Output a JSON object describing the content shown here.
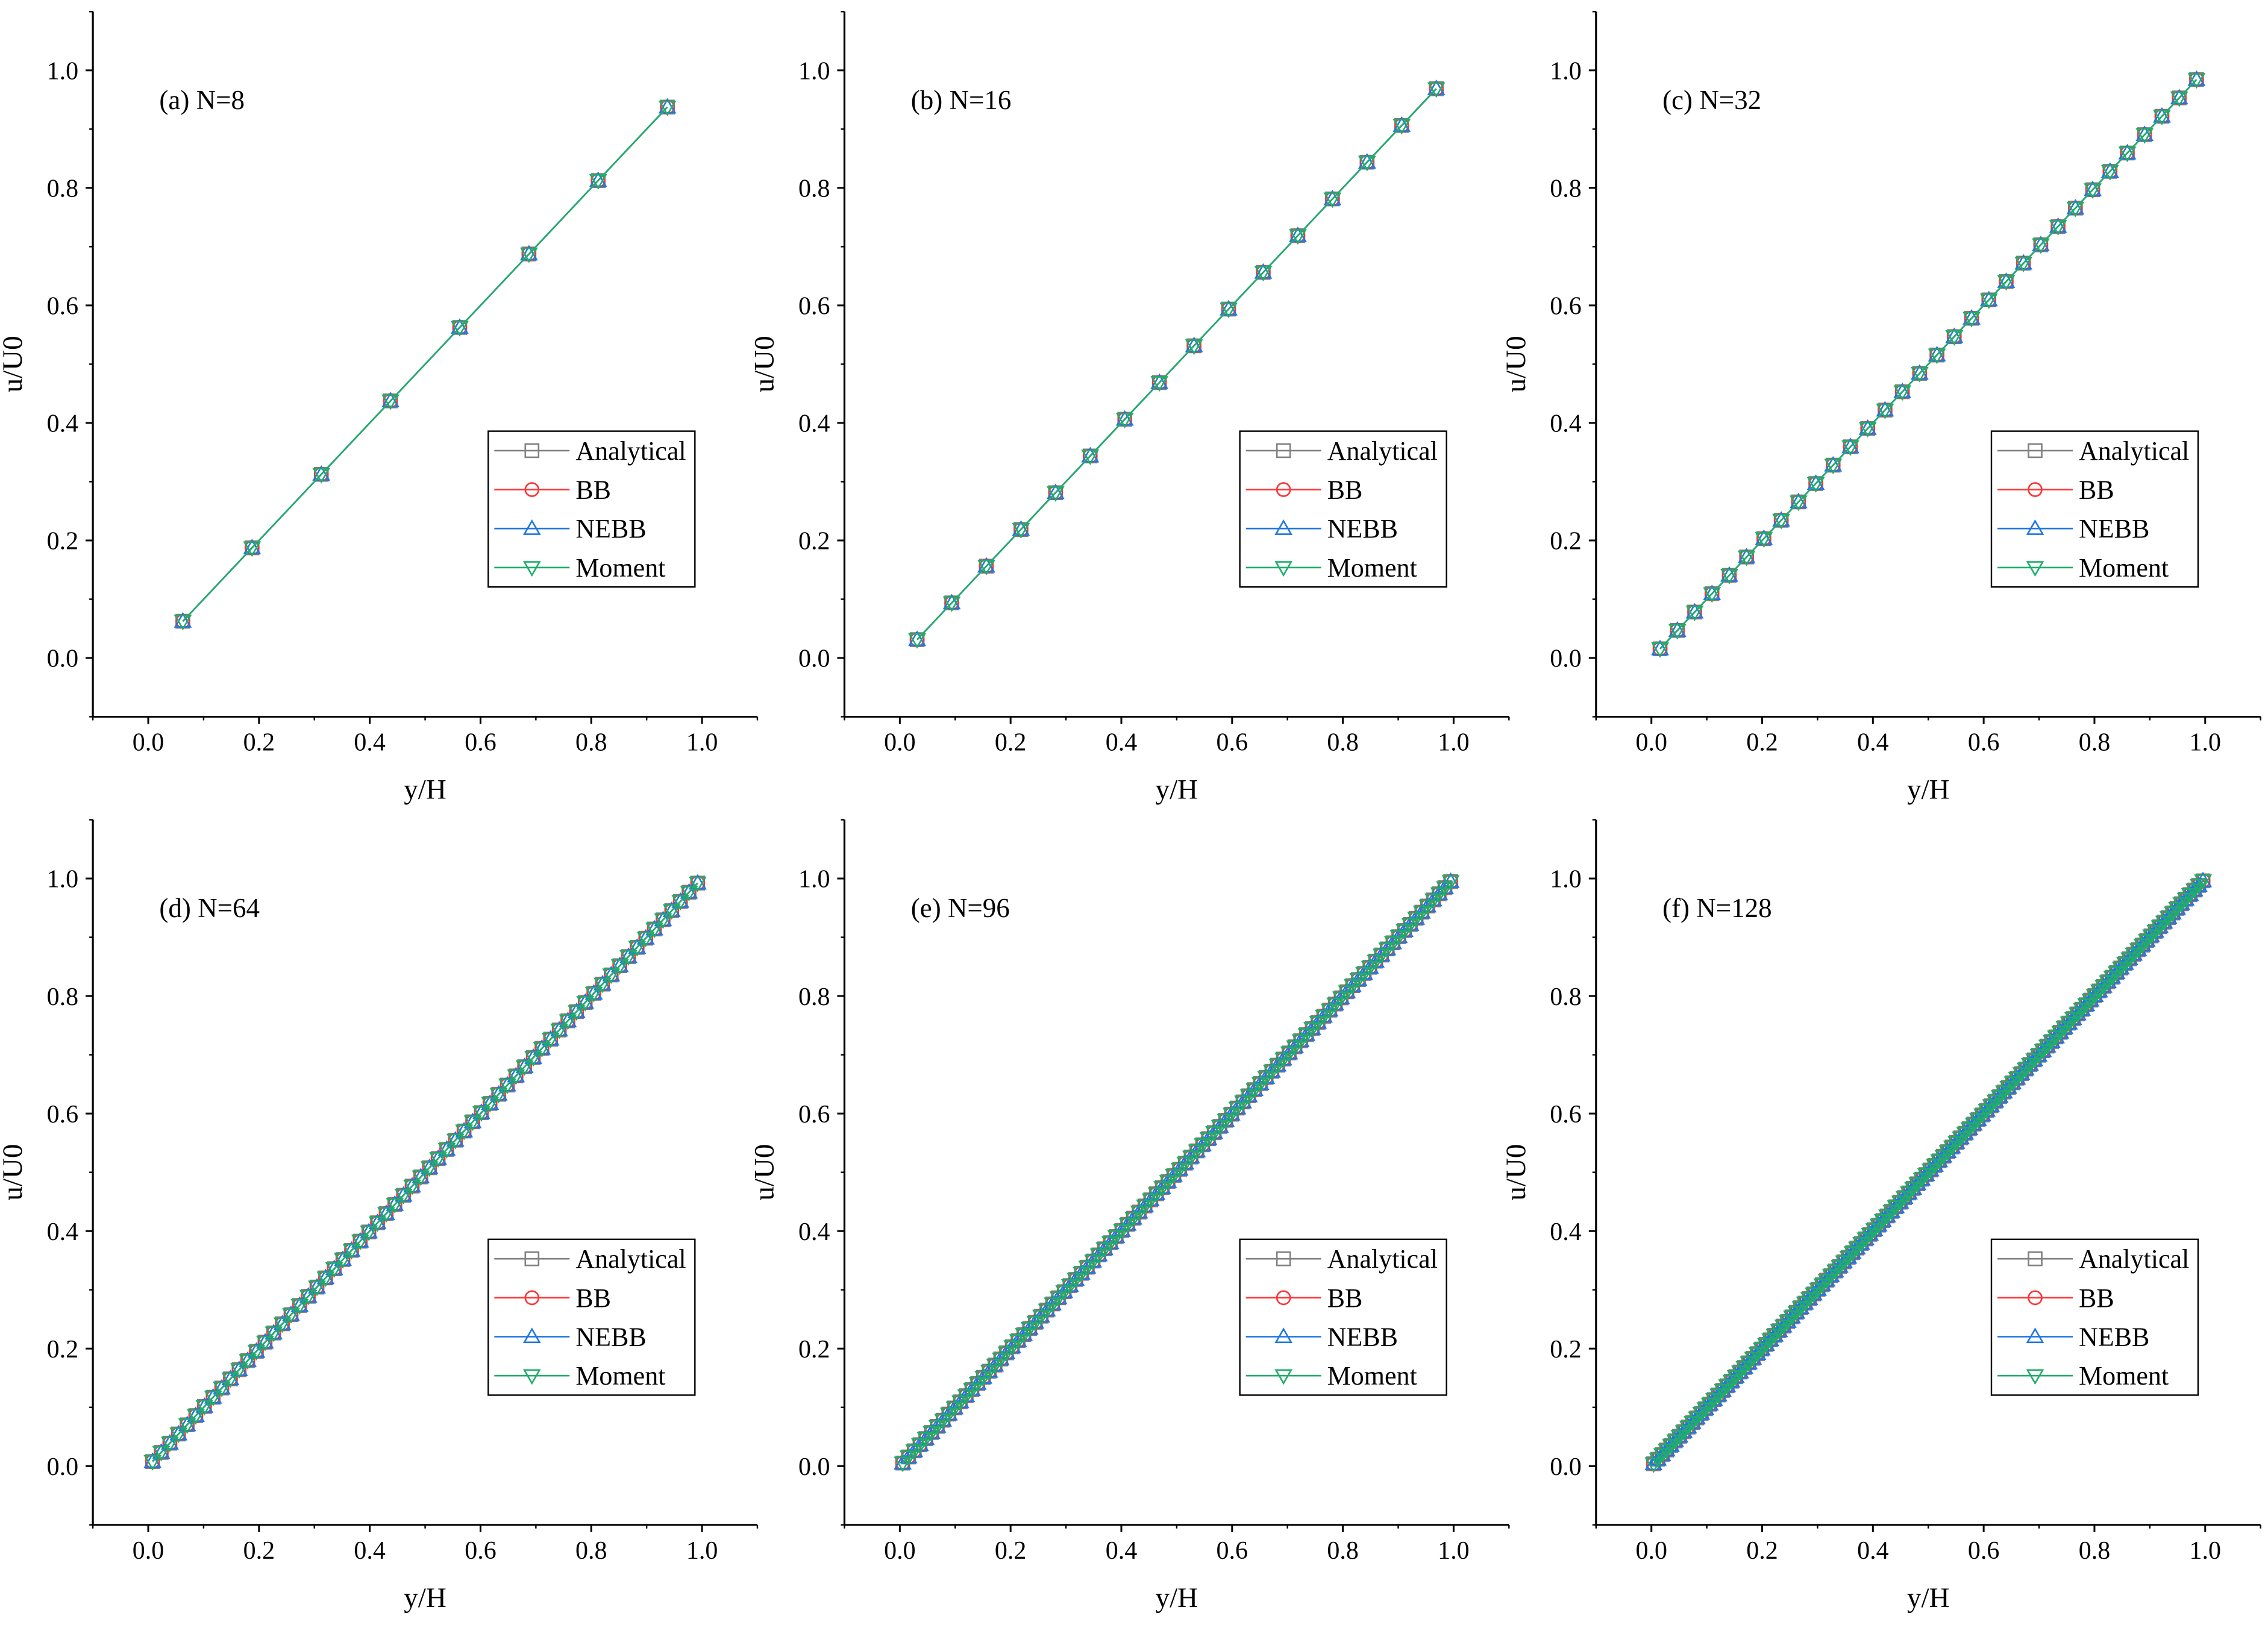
{
  "chart_data": [
    {
      "type": "line",
      "title": "(a) N=8",
      "N": 8,
      "xlabel": "y/H",
      "ylabel": "u/U0",
      "xlim": [
        -0.1,
        1.1
      ],
      "ylim": [
        -0.1,
        1.1
      ],
      "x_ticks": [
        "0.0",
        "0.2",
        "0.4",
        "0.6",
        "0.8",
        "1.0"
      ],
      "y_ticks": [
        "0.0",
        "0.2",
        "0.4",
        "0.6",
        "0.8",
        "1.0"
      ],
      "series": [
        {
          "name": "Analytical",
          "color": "#808080",
          "marker": "square"
        },
        {
          "name": "BB",
          "color": "#ff3333",
          "marker": "circle"
        },
        {
          "name": "NEBB",
          "color": "#1f77e4",
          "marker": "triangle-up"
        },
        {
          "name": "Moment",
          "color": "#1fad6b",
          "marker": "triangle-down"
        }
      ],
      "relation": "u/U0 = y/H, sampled at y/H = (i+0.5)/N, i = 0..N-1",
      "legend_position": "center-right"
    },
    {
      "type": "line",
      "title": "(b) N=16",
      "N": 16,
      "xlabel": "y/H",
      "ylabel": "u/U0",
      "xlim": [
        -0.1,
        1.1
      ],
      "ylim": [
        -0.1,
        1.1
      ],
      "x_ticks": [
        "0.0",
        "0.2",
        "0.4",
        "0.6",
        "0.8",
        "1.0"
      ],
      "y_ticks": [
        "0.0",
        "0.2",
        "0.4",
        "0.6",
        "0.8",
        "1.0"
      ],
      "series": [
        {
          "name": "Analytical",
          "color": "#808080",
          "marker": "square"
        },
        {
          "name": "BB",
          "color": "#ff3333",
          "marker": "circle"
        },
        {
          "name": "NEBB",
          "color": "#1f77e4",
          "marker": "triangle-up"
        },
        {
          "name": "Moment",
          "color": "#1fad6b",
          "marker": "triangle-down"
        }
      ],
      "relation": "u/U0 = y/H, sampled at y/H = (i+0.5)/N, i = 0..N-1",
      "legend_position": "center-right"
    },
    {
      "type": "line",
      "title": "(c) N=32",
      "N": 32,
      "xlabel": "y/H",
      "ylabel": "u/U0",
      "xlim": [
        -0.1,
        1.1
      ],
      "ylim": [
        -0.1,
        1.1
      ],
      "x_ticks": [
        "0.0",
        "0.2",
        "0.4",
        "0.6",
        "0.8",
        "1.0"
      ],
      "y_ticks": [
        "0.0",
        "0.2",
        "0.4",
        "0.6",
        "0.8",
        "1.0"
      ],
      "series": [
        {
          "name": "Analytical",
          "color": "#808080",
          "marker": "square"
        },
        {
          "name": "BB",
          "color": "#ff3333",
          "marker": "circle"
        },
        {
          "name": "NEBB",
          "color": "#1f77e4",
          "marker": "triangle-up"
        },
        {
          "name": "Moment",
          "color": "#1fad6b",
          "marker": "triangle-down"
        }
      ],
      "relation": "u/U0 = y/H, sampled at y/H = (i+0.5)/N, i = 0..N-1",
      "legend_position": "center-right"
    },
    {
      "type": "line",
      "title": "(d) N=64",
      "N": 64,
      "xlabel": "y/H",
      "ylabel": "u/U0",
      "xlim": [
        -0.1,
        1.1
      ],
      "ylim": [
        -0.1,
        1.1
      ],
      "x_ticks": [
        "0.0",
        "0.2",
        "0.4",
        "0.6",
        "0.8",
        "1.0"
      ],
      "y_ticks": [
        "0.0",
        "0.2",
        "0.4",
        "0.6",
        "0.8",
        "1.0"
      ],
      "series": [
        {
          "name": "Analytical",
          "color": "#808080",
          "marker": "square"
        },
        {
          "name": "BB",
          "color": "#ff3333",
          "marker": "circle"
        },
        {
          "name": "NEBB",
          "color": "#1f77e4",
          "marker": "triangle-up"
        },
        {
          "name": "Moment",
          "color": "#1fad6b",
          "marker": "triangle-down"
        }
      ],
      "relation": "u/U0 = y/H, sampled at y/H = (i+0.5)/N, i = 0..N-1",
      "legend_position": "center-right"
    },
    {
      "type": "line",
      "title": "(e) N=96",
      "N": 96,
      "xlabel": "y/H",
      "ylabel": "u/U0",
      "xlim": [
        -0.1,
        1.1
      ],
      "ylim": [
        -0.1,
        1.1
      ],
      "x_ticks": [
        "0.0",
        "0.2",
        "0.4",
        "0.6",
        "0.8",
        "1.0"
      ],
      "y_ticks": [
        "0.0",
        "0.2",
        "0.4",
        "0.6",
        "0.8",
        "1.0"
      ],
      "series": [
        {
          "name": "Analytical",
          "color": "#808080",
          "marker": "square"
        },
        {
          "name": "BB",
          "color": "#ff3333",
          "marker": "circle"
        },
        {
          "name": "NEBB",
          "color": "#1f77e4",
          "marker": "triangle-up"
        },
        {
          "name": "Moment",
          "color": "#1fad6b",
          "marker": "triangle-down"
        }
      ],
      "relation": "u/U0 = y/H, sampled at y/H = (i+0.5)/N, i = 0..N-1",
      "legend_position": "center-right"
    },
    {
      "type": "line",
      "title": "(f) N=128",
      "N": 128,
      "xlabel": "y/H",
      "ylabel": "u/U0",
      "xlim": [
        -0.1,
        1.1
      ],
      "ylim": [
        -0.1,
        1.1
      ],
      "x_ticks": [
        "0.0",
        "0.2",
        "0.4",
        "0.6",
        "0.8",
        "1.0"
      ],
      "y_ticks": [
        "0.0",
        "0.2",
        "0.4",
        "0.6",
        "0.8",
        "1.0"
      ],
      "series": [
        {
          "name": "Analytical",
          "color": "#808080",
          "marker": "square"
        },
        {
          "name": "BB",
          "color": "#ff3333",
          "marker": "circle"
        },
        {
          "name": "NEBB",
          "color": "#1f77e4",
          "marker": "triangle-up"
        },
        {
          "name": "Moment",
          "color": "#1fad6b",
          "marker": "triangle-down"
        }
      ],
      "relation": "u/U0 = y/H, sampled at y/H = (i+0.5)/N, i = 0..N-1",
      "legend_position": "center-right"
    }
  ]
}
